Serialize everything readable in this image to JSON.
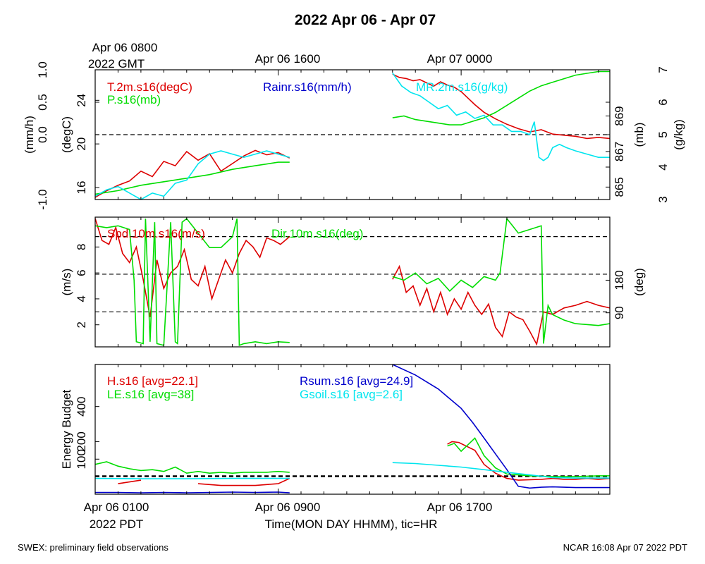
{
  "page": {
    "title": "2022 Apr 06 - Apr 07",
    "footer_left": "SWEX: preliminary field observations",
    "footer_right": "NCAR 16:08 Apr 07 2022 PDT"
  },
  "colors": {
    "red": "#dd0000",
    "green": "#00dd00",
    "blue": "#0000cc",
    "cyan": "#00e5ee"
  },
  "top_axis": {
    "labels": [
      "Apr 06 0800",
      "Apr 06 1600",
      "Apr 07 0000"
    ],
    "sublabel": "2022 GMT"
  },
  "bottom_axis": {
    "labels": [
      "Apr 06 0100",
      "Apr 06 0900",
      "Apr 06 1700"
    ],
    "sublabel": "2022 PDT",
    "title": "Time(MON DAY HHMM), tic=HR"
  },
  "chart_data": [
    {
      "type": "line",
      "panel": "met",
      "x_unit": "hours since Apr 06 0100 PDT",
      "xlim": [
        0,
        22.5
      ],
      "axes": {
        "rain": {
          "label": "(mm/h)",
          "ticks": [
            "-1.0",
            "0.0",
            "0.5",
            "1.0"
          ],
          "ylim": [
            -1.0,
            1.0
          ]
        },
        "temp": {
          "label": "(degC)",
          "ticks": [
            "16",
            "20",
            "24"
          ],
          "ylim": [
            14.9,
            26.8
          ]
        },
        "pres": {
          "label": "(mb)",
          "ticks": [
            "865",
            "867",
            "869"
          ],
          "ylim": [
            864.3,
            871.6
          ]
        },
        "mr": {
          "label": "(g/kg)",
          "ticks": [
            "3",
            "4",
            "5",
            "6",
            "7"
          ],
          "ylim": [
            3.0,
            7.0
          ]
        }
      },
      "legend": [
        "T.2m.s16(degC)",
        "P.s16(mb)",
        "Rainr.s16(mm/h)",
        "MR.2m.s16(g/kg)"
      ],
      "series": [
        {
          "name": "T.2m.s16(degC)",
          "axis": "temp",
          "color": "#dd0000",
          "x": [
            0,
            0.5,
            1,
            1.5,
            2,
            2.5,
            3,
            3.5,
            4,
            4.5,
            5,
            5.5,
            6,
            6.5,
            7,
            7.5,
            8,
            8.5,
            13,
            13.3,
            13.6,
            13.9,
            14.2,
            14.5,
            14.8,
            15.1,
            15.4,
            15.7,
            16,
            16.3,
            16.6,
            17,
            17.5,
            18,
            18.5,
            19,
            19.5,
            20,
            20.5,
            21,
            21.5,
            22,
            22.5
          ],
          "y": [
            15.1,
            15.7,
            16.2,
            16.6,
            17.5,
            17.0,
            18.4,
            18.0,
            19.3,
            18.5,
            19.1,
            17.5,
            18.2,
            18.9,
            19.4,
            19.0,
            19.2,
            18.7,
            26.4,
            26.1,
            26.0,
            25.8,
            25.9,
            25.6,
            25.3,
            25.7,
            25.4,
            25.2,
            24.8,
            24.2,
            23.6,
            22.9,
            22.3,
            21.8,
            21.4,
            21.1,
            21.3,
            20.9,
            20.8,
            20.7,
            20.5,
            20.6,
            20.5
          ]
        },
        {
          "name": "P.s16(mb)",
          "axis": "pres",
          "color": "#00dd00",
          "x": [
            0,
            1,
            2,
            3,
            4,
            5,
            6,
            7,
            8,
            8.5,
            13,
            13.5,
            14,
            14.5,
            15,
            15.5,
            16,
            16.5,
            17,
            17.5,
            18,
            18.5,
            19,
            19.5,
            20,
            20.5,
            21,
            21.5,
            22,
            22.5
          ],
          "y": [
            864.6,
            864.8,
            865.1,
            865.3,
            865.5,
            865.7,
            866.0,
            866.2,
            866.4,
            866.4,
            868.9,
            869.0,
            868.8,
            868.7,
            868.6,
            868.5,
            868.5,
            868.7,
            868.9,
            869.2,
            869.6,
            870.0,
            870.4,
            870.7,
            870.9,
            871.1,
            871.3,
            871.4,
            871.5,
            871.5
          ]
        },
        {
          "name": "Rainr.s16(mm/h)",
          "axis": "rain",
          "color": "#0000cc",
          "x": [
            0,
            8.5,
            13,
            22.5
          ],
          "y": [
            0.0,
            0.0,
            0.0,
            0.0
          ]
        },
        {
          "name": "MR.2m.s16(g/kg)",
          "axis": "mr",
          "color": "#00e5ee",
          "x": [
            0,
            0.5,
            1,
            1.5,
            2,
            2.5,
            3,
            3.5,
            4,
            4.5,
            5,
            5.5,
            6,
            6.5,
            7,
            7.5,
            8,
            8.5,
            13,
            13.4,
            13.8,
            14.2,
            14.6,
            15,
            15.4,
            15.8,
            16.2,
            16.6,
            17,
            17.4,
            17.8,
            18.2,
            18.6,
            19,
            19.2,
            19.4,
            19.6,
            19.8,
            20,
            20.3,
            20.6,
            21,
            21.5,
            22,
            22.5
          ],
          "y": [
            3.1,
            3.3,
            3.4,
            3.2,
            3.0,
            3.2,
            3.1,
            3.5,
            3.6,
            4.1,
            4.4,
            4.5,
            4.4,
            4.3,
            4.4,
            4.5,
            4.4,
            4.3,
            6.9,
            6.5,
            6.3,
            6.2,
            6.0,
            5.8,
            5.9,
            5.6,
            5.7,
            5.5,
            5.6,
            5.3,
            5.3,
            5.1,
            5.1,
            5.0,
            5.4,
            4.3,
            4.2,
            4.3,
            4.6,
            4.7,
            4.6,
            4.5,
            4.4,
            4.3,
            4.3
          ]
        }
      ],
      "reference_lines": [
        {
          "axis": "rain",
          "y": 0.0
        }
      ]
    },
    {
      "type": "line",
      "panel": "wind",
      "xlim": [
        0,
        22.5
      ],
      "axes": {
        "spd": {
          "label": "(m/s)",
          "ticks": [
            "2",
            "4",
            "6",
            "8"
          ],
          "ylim": [
            0.3,
            10.3
          ]
        },
        "dir": {
          "label": "(deg)",
          "ticks": [
            "90",
            "180"
          ],
          "ylim": [
            -4,
            354
          ]
        }
      },
      "legend": [
        "Spd.10m.s16(m/s)",
        "Dir.10m.s16(deg)"
      ],
      "series": [
        {
          "name": "Spd.10m.s16(m/s)",
          "axis": "spd",
          "color": "#dd0000",
          "x": [
            0,
            0.3,
            0.6,
            0.9,
            1.2,
            1.5,
            1.8,
            2.1,
            2.4,
            2.7,
            3.0,
            3.3,
            3.6,
            3.9,
            4.2,
            4.5,
            4.8,
            5.1,
            5.4,
            5.7,
            6.0,
            6.3,
            6.6,
            6.9,
            7.2,
            7.5,
            7.8,
            8.1,
            8.5,
            13,
            13.3,
            13.6,
            13.9,
            14.2,
            14.5,
            14.8,
            15.1,
            15.4,
            15.7,
            16,
            16.3,
            16.6,
            16.9,
            17.2,
            17.5,
            17.8,
            18.1,
            18.4,
            18.7,
            19.0,
            19.3,
            19.6,
            20,
            20.5,
            21,
            21.5,
            22,
            22.5
          ],
          "y": [
            10.2,
            8.5,
            8.2,
            9.5,
            7.5,
            6.8,
            8.0,
            5.5,
            2.6,
            7.0,
            4.8,
            6.0,
            6.5,
            7.8,
            5.5,
            5.0,
            6.5,
            4.0,
            5.5,
            7.0,
            6.0,
            7.5,
            8.5,
            8.0,
            7.2,
            8.7,
            8.5,
            8.2,
            8.8,
            5.5,
            6.5,
            4.5,
            5.0,
            3.5,
            4.8,
            3.0,
            4.5,
            2.8,
            4.0,
            3.2,
            4.5,
            3.5,
            2.8,
            3.6,
            1.8,
            1.1,
            3.0,
            2.6,
            2.4,
            1.5,
            0.5,
            3.0,
            2.8,
            3.3,
            3.5,
            3.8,
            3.5,
            3.3
          ]
        },
        {
          "name": "Dir.10m.s16(deg)",
          "axis": "dir",
          "color": "#00dd00",
          "x": [
            0,
            0.5,
            1.0,
            1.5,
            1.7,
            1.8,
            2.1,
            2.2,
            2.4,
            2.6,
            2.7,
            3.0,
            3.3,
            3.5,
            3.6,
            3.8,
            4.0,
            4.5,
            5.0,
            5.5,
            6.0,
            6.2,
            6.3,
            6.5,
            7.0,
            7.5,
            8.0,
            8.5,
            13,
            13.5,
            14,
            14.5,
            15,
            15.5,
            16,
            16.5,
            17,
            17.5,
            17.7,
            18,
            18.5,
            19,
            19.5,
            19.6,
            19.8,
            20,
            20.5,
            21,
            22,
            22.5
          ],
          "y": [
            330,
            325,
            330,
            320,
            180,
            10,
            5,
            350,
            10,
            340,
            5,
            0,
            340,
            10,
            5,
            340,
            350,
            310,
            270,
            270,
            300,
            350,
            0,
            5,
            10,
            5,
            10,
            8,
            190,
            180,
            200,
            170,
            185,
            150,
            180,
            160,
            190,
            180,
            200,
            350,
            310,
            320,
            330,
            5,
            110,
            85,
            70,
            60,
            55,
            60
          ]
        }
      ],
      "reference_lines": [
        {
          "axis": "spd",
          "y": 8.8
        },
        {
          "axis": "spd",
          "y": 5.9
        },
        {
          "axis": "spd",
          "y": 3.0
        }
      ]
    },
    {
      "type": "line",
      "panel": "energy",
      "xlim": [
        0,
        22.5
      ],
      "axes": {
        "eb": {
          "label": "Energy Budget",
          "ticks": [
            "100",
            "200",
            "400"
          ],
          "ylim": [
            -100,
            640
          ]
        }
      },
      "legend": [
        "H.s16 [avg=22.1]",
        "LE.s16 [avg=38]",
        "Rsum.s16 [avg=24.9]",
        "Gsoil.s16 [avg=2.6]"
      ],
      "series": [
        {
          "name": "H.s16 [avg=22.1]",
          "color": "#dd0000",
          "x": [
            1.0,
            1.5,
            2.0,
            4.5,
            5.0,
            5.5,
            7.0,
            7.5,
            8.0,
            8.5,
            15.4,
            15.6,
            15.9,
            16.6,
            17.0,
            17.5,
            18.0,
            18.5,
            19.5,
            20.0,
            20.5,
            21.0,
            21.5,
            22.0,
            22.5
          ],
          "y": [
            -40,
            -30,
            -20,
            -40,
            -45,
            -50,
            -50,
            -45,
            -40,
            -10,
            185,
            200,
            195,
            150,
            70,
            20,
            -10,
            -20,
            -15,
            -10,
            -15,
            -15,
            -10,
            -15,
            -10
          ]
        },
        {
          "name": "LE.s16 [avg=38]",
          "color": "#00dd00",
          "x": [
            0,
            0.5,
            1.0,
            1.5,
            2.0,
            2.5,
            3.0,
            3.5,
            4.0,
            4.5,
            5.0,
            5.5,
            6.0,
            6.5,
            7.0,
            7.5,
            8.0,
            8.5,
            15.4,
            15.7,
            16.0,
            16.6,
            17.0,
            17.5,
            18.0,
            18.5,
            19.0,
            20.0,
            21.0,
            22.0,
            22.5
          ],
          "y": [
            70,
            85,
            60,
            45,
            35,
            40,
            30,
            55,
            20,
            30,
            20,
            25,
            20,
            25,
            25,
            25,
            30,
            25,
            175,
            190,
            145,
            220,
            120,
            50,
            15,
            10,
            5,
            0,
            0,
            5,
            5
          ]
        },
        {
          "name": "Rsum.s16 [avg=24.9]",
          "color": "#0000cc",
          "x": [
            0,
            1,
            2,
            3,
            4,
            5,
            6,
            7,
            8,
            8.5,
            13,
            14,
            15,
            16,
            16.5,
            17,
            17.5,
            18,
            18.5,
            19,
            19.5,
            20,
            20.5,
            21,
            22,
            22.5
          ],
          "y": [
            -90,
            -90,
            -92,
            -90,
            -92,
            -90,
            -88,
            -90,
            -88,
            -92,
            640,
            580,
            500,
            390,
            310,
            220,
            130,
            40,
            -55,
            -65,
            -60,
            -58,
            -60,
            -62,
            -62,
            -62
          ]
        },
        {
          "name": "Gsoil.s16 [avg=2.6]",
          "color": "#00e5ee",
          "x": [
            0,
            2,
            4,
            6,
            8,
            8.5,
            13,
            14,
            15,
            16,
            17,
            18,
            19,
            20,
            21,
            22,
            22.5
          ],
          "y": [
            -10,
            -12,
            -12,
            -10,
            -10,
            -10,
            80,
            75,
            65,
            55,
            40,
            25,
            10,
            -5,
            -8,
            -8,
            -8
          ]
        }
      ],
      "reference_lines": [
        {
          "y": 0
        },
        {
          "y": 5
        }
      ]
    }
  ]
}
